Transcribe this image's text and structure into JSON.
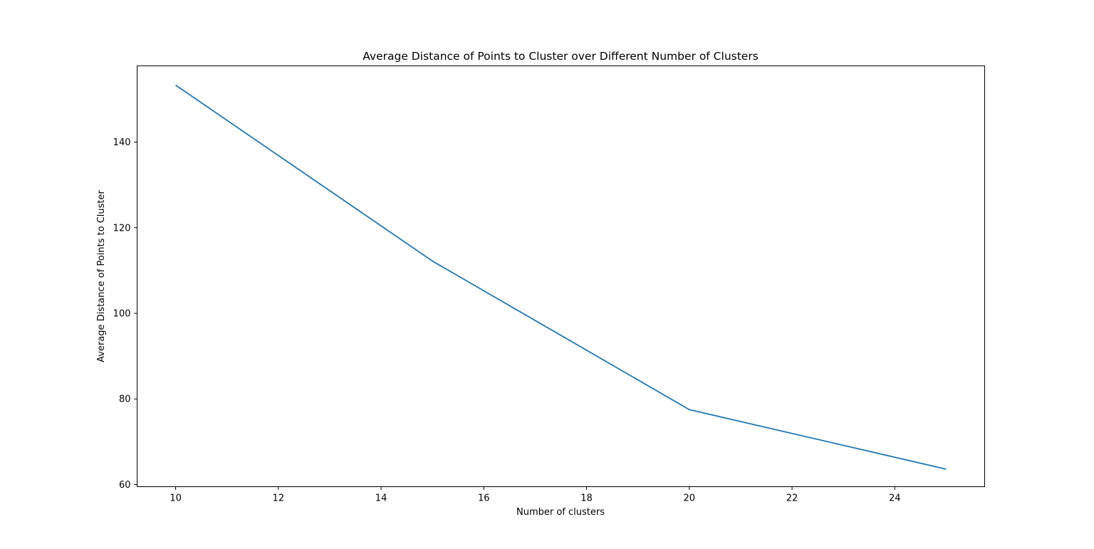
{
  "chart_data": {
    "type": "line",
    "title": "Average Distance of Points to Cluster over Different Number of Clusters",
    "xlabel": "Number of clusters",
    "ylabel": "Average Distance of Points to Cluster",
    "xlim": [
      9.25,
      25.75
    ],
    "ylim": [
      59.5,
      157.8
    ],
    "xticks": [
      10,
      12,
      14,
      16,
      18,
      20,
      22,
      24
    ],
    "yticks": [
      60,
      80,
      100,
      120,
      140
    ],
    "grid": false,
    "series": [
      {
        "color": "#1f77b4",
        "x": [
          10,
          15,
          20,
          25
        ],
        "y": [
          153.3,
          112.2,
          77.5,
          63.6
        ]
      }
    ]
  }
}
